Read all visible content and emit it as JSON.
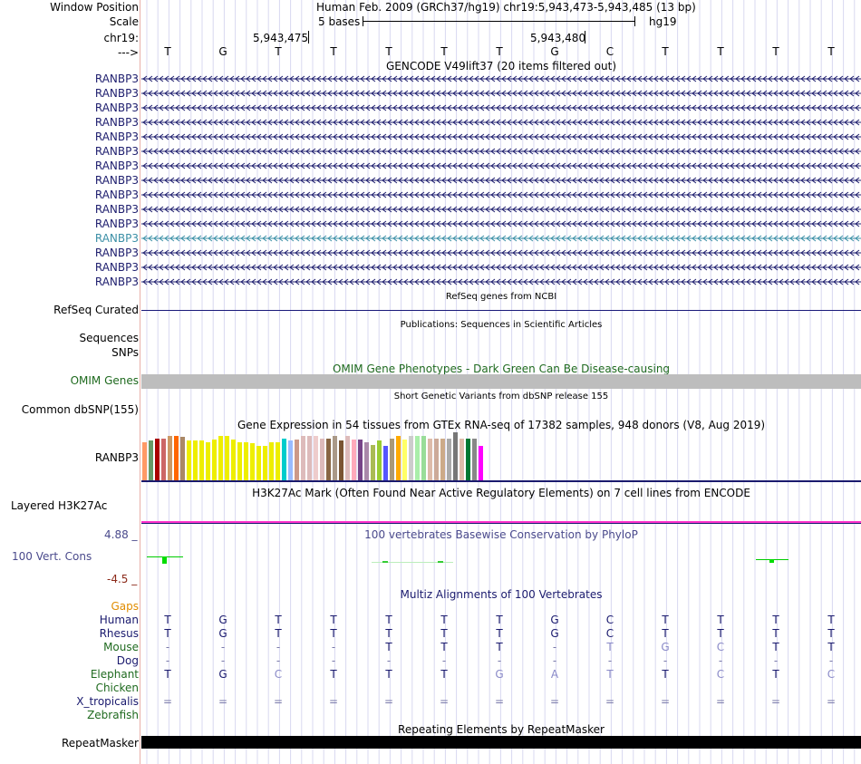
{
  "position": {
    "window_label": "Window Position",
    "window_value": "Human Feb. 2009 (GRCh37/hg19)   chr19:5,943,473-5,943,485 (13 bp)",
    "scale_label": "Scale",
    "scale_bases": "5 bases",
    "scale_db": "hg19",
    "chrom_label": "chr19:",
    "coord1": "5,943,475",
    "coord2": "5,943,480",
    "strand_label": "--->",
    "bases": [
      "T",
      "G",
      "T",
      "T",
      "T",
      "T",
      "T",
      "G",
      "C",
      "T",
      "T",
      "T",
      "T"
    ]
  },
  "gencode": {
    "title": "GENCODE V49lift37 (20 items filtered out)",
    "genes": [
      "RANBP3",
      "RANBP3",
      "RANBP3",
      "RANBP3",
      "RANBP3",
      "RANBP3",
      "RANBP3",
      "RANBP3",
      "RANBP3",
      "RANBP3",
      "RANBP3",
      "RANBP3",
      "RANBP3",
      "RANBP3",
      "RANBP3"
    ],
    "highlight_index": 11,
    "color": "#1e1e6e",
    "highlight_color": "#3b8fa6"
  },
  "refseq": {
    "title": "RefSeq genes from NCBI",
    "label": "RefSeq Curated",
    "color": "#1a1a7a"
  },
  "publications": {
    "title": "Publications: Sequences in Scientific Articles",
    "label": "Sequences"
  },
  "snps": {
    "label": "SNPs"
  },
  "omim": {
    "title": "OMIM Gene Phenotypes - Dark Green Can Be Disease-causing",
    "label": "OMIM Genes",
    "color": "#1f6a1f"
  },
  "dbsnp": {
    "title": "Short Genetic Variants from dbSNP release 155",
    "label": "Common dbSNP(155)"
  },
  "gtex": {
    "title": "Gene Expression in 54 tissues from GTEx RNA-seq of 17382 samples, 948 donors (V8, Aug 2019)",
    "label": "RANBP3",
    "values": [
      0.72,
      0.76,
      0.8,
      0.8,
      0.84,
      0.84,
      0.82,
      0.76,
      0.76,
      0.76,
      0.72,
      0.78,
      0.84,
      0.84,
      0.78,
      0.72,
      0.72,
      0.7,
      0.66,
      0.66,
      0.72,
      0.72,
      0.8,
      0.76,
      0.78,
      0.84,
      0.84,
      0.84,
      0.8,
      0.8,
      0.84,
      0.76,
      0.84,
      0.78,
      0.78,
      0.72,
      0.68,
      0.76,
      0.66,
      0.8,
      0.84,
      0.78,
      0.84,
      0.84,
      0.84,
      0.8,
      0.8,
      0.8,
      0.8,
      0.92,
      0.8,
      0.8,
      0.8,
      0.66
    ],
    "colors": [
      "#ff9966",
      "#669966",
      "#aa0000",
      "#cc6666",
      "#cc9966",
      "#ff6600",
      "#aa8866",
      "#eeee00",
      "#eeee00",
      "#eeee00",
      "#eeee00",
      "#eeee00",
      "#eeee00",
      "#eeee00",
      "#eeee00",
      "#eeee00",
      "#eeee00",
      "#eeee00",
      "#eeee00",
      "#eeee00",
      "#eeee00",
      "#eeee00",
      "#00cccc",
      "#99bbff",
      "#cc9988",
      "#ddbbbb",
      "#ddbbbb",
      "#eecccc",
      "#ddbbbb",
      "#886644",
      "#aa9988",
      "#7a5533",
      "#ddbbbb",
      "#ffaabb",
      "#774488",
      "#aa88aa",
      "#aabb55",
      "#99cc33",
      "#5555ff",
      "#aa9977",
      "#ffaa00",
      "#ffff66",
      "#cccccc",
      "#aaeeaa",
      "#99dd99",
      "#ddbbaa",
      "#ccaa99",
      "#ccaa88",
      "#aaaaaa",
      "#777777",
      "#ddbbaa",
      "#007733",
      "#888888",
      "#ff00ff"
    ]
  },
  "h3k27ac": {
    "title": "H3K27Ac Mark (Often Found Near Active Regulatory Elements) on 7 cell lines from ENCODE",
    "label": "Layered H3K27Ac"
  },
  "cons": {
    "title": "100 vertebrates Basewise Conservation by PhyloP",
    "label": "100 Vert. Cons",
    "max": "4.88 _",
    "min": "-4.5 _",
    "label_color": "#4a4a8c",
    "max_color": "#4a4a8c",
    "min_color": "#8c2a1a",
    "peak_color": "#00dd00"
  },
  "multiz": {
    "title": "Multiz Alignments of 100 Vertebrates",
    "gaps_label": "Gaps",
    "gaps_color": "#e08c00",
    "title_color": "#1a1a6e",
    "species": [
      {
        "name": "Human",
        "color": "#1a1a6e",
        "bases": [
          "T",
          "G",
          "T",
          "T",
          "T",
          "T",
          "T",
          "G",
          "C",
          "T",
          "T",
          "T",
          "T"
        ]
      },
      {
        "name": "Rhesus",
        "color": "#1a1a6e",
        "bases": [
          "T",
          "G",
          "T",
          "T",
          "T",
          "T",
          "T",
          "G",
          "C",
          "T",
          "T",
          "T",
          "T"
        ]
      },
      {
        "name": "Mouse",
        "color": "#1f6a1f",
        "bases": [
          "-",
          "-",
          "-",
          "-",
          "T",
          "T",
          "T",
          "-",
          "T",
          "G",
          "C",
          "T",
          "T"
        ]
      },
      {
        "name": "Dog",
        "color": "#1a1a6e",
        "bases": [
          "-",
          "-",
          "-",
          "-",
          "-",
          "-",
          "-",
          "-",
          "-",
          "-",
          "-",
          "-",
          "-"
        ]
      },
      {
        "name": "Elephant",
        "color": "#1f6a1f",
        "bases": [
          "T",
          "G",
          "C",
          "T",
          "T",
          "T",
          "G",
          "A",
          "T",
          "T",
          "C",
          "T",
          "C"
        ]
      },
      {
        "name": "Chicken",
        "color": "#1f6a1f",
        "bases": [
          "",
          "",
          "",
          "",
          "",
          "",
          "",
          "",
          "",
          "",
          "",
          "",
          ""
        ]
      },
      {
        "name": "X_tropicalis",
        "color": "#1a1a6e",
        "bases": [
          "=",
          "=",
          "=",
          "=",
          "=",
          "=",
          "=",
          "=",
          "=",
          "=",
          "=",
          "=",
          "="
        ]
      },
      {
        "name": "Zebrafish",
        "color": "#1f6a1f",
        "bases": [
          "",
          "",
          "",
          "",
          "",
          "",
          "",
          "",
          "",
          "",
          "",
          "",
          ""
        ]
      }
    ]
  },
  "repeatmasker": {
    "title": "Repeating Elements by RepeatMasker",
    "label": "RepeatMasker"
  }
}
